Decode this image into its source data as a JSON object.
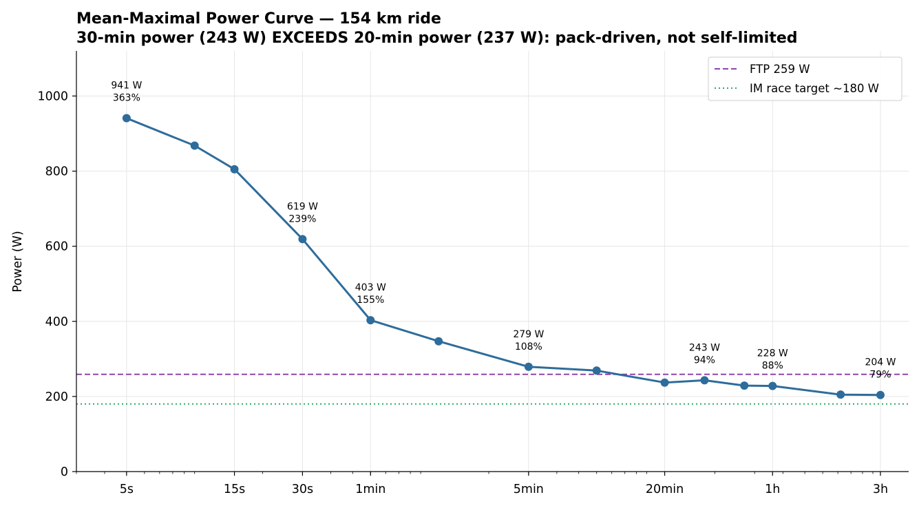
{
  "chart_data": {
    "type": "line",
    "title": "Mean-Maximal Power Curve — 154 km ride",
    "subtitle": "30-min power (243 W) EXCEEDS 20-min power (237 W): pack-driven, not self-limited",
    "xlabel": "",
    "ylabel": "Power (W)",
    "x_scale": "log",
    "x_unit": "seconds",
    "xlim": [
      3.0,
      14400
    ],
    "ylim": [
      0,
      1120
    ],
    "yticks": [
      0,
      200,
      400,
      600,
      800,
      1000
    ],
    "xticks": [
      {
        "value": 5,
        "label": "5s"
      },
      {
        "value": 15,
        "label": "15s"
      },
      {
        "value": 30,
        "label": "30s"
      },
      {
        "value": 60,
        "label": "1min"
      },
      {
        "value": 300,
        "label": "5min"
      },
      {
        "value": 1200,
        "label": "20min"
      },
      {
        "value": 3600,
        "label": "1h"
      },
      {
        "value": 10800,
        "label": "3h"
      }
    ],
    "grid": true,
    "legend_position": "upper-right",
    "series": [
      {
        "name": "",
        "color": "#2e6c9b",
        "x": [
          5,
          10,
          15,
          30,
          60,
          120,
          300,
          600,
          1200,
          1800,
          2700,
          3600,
          7200,
          10800
        ],
        "values": [
          941,
          868,
          805,
          619,
          403,
          347,
          279,
          269,
          237,
          243,
          229,
          228,
          205,
          204
        ]
      }
    ],
    "reference_lines": [
      {
        "name": "FTP 259 W",
        "value": 259,
        "color": "#8e44ad",
        "style": "dashed"
      },
      {
        "name": "IM race target ~180 W",
        "value": 180,
        "color": "#27ae60",
        "style": "dotted"
      }
    ],
    "annotations": [
      {
        "x": 5,
        "y": 941,
        "line1": "941 W",
        "line2": "363%"
      },
      {
        "x": 30,
        "y": 619,
        "line1": "619 W",
        "line2": "239%"
      },
      {
        "x": 60,
        "y": 403,
        "line1": "403 W",
        "line2": "155%"
      },
      {
        "x": 300,
        "y": 279,
        "line1": "279 W",
        "line2": "108%"
      },
      {
        "x": 1800,
        "y": 243,
        "line1": "243 W",
        "line2": "94%"
      },
      {
        "x": 3600,
        "y": 228,
        "line1": "228 W",
        "line2": "88%"
      },
      {
        "x": 10800,
        "y": 204,
        "line1": "204 W",
        "line2": "79%"
      }
    ]
  }
}
